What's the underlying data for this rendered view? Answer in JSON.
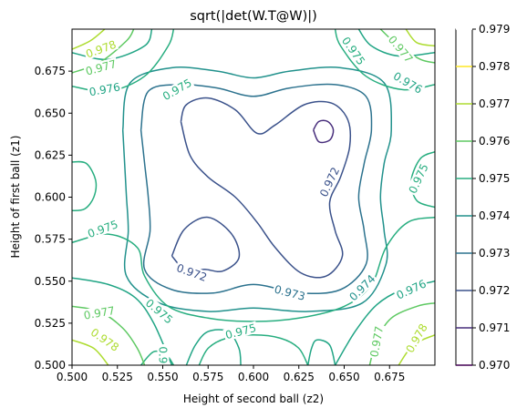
{
  "chart_data": {
    "type": "contour",
    "title": "sqrt(|det(W.T@W)|)",
    "xlabel": "Height of second ball (z2)",
    "ylabel": "Height of first ball (z1)",
    "xlim": [
      0.5,
      0.7
    ],
    "ylim": [
      0.5,
      0.7
    ],
    "x_ticks": [
      "0.500",
      "0.525",
      "0.550",
      "0.575",
      "0.600",
      "0.625",
      "0.650",
      "0.675"
    ],
    "y_ticks": [
      "0.500",
      "0.525",
      "0.550",
      "0.575",
      "0.600",
      "0.625",
      "0.650",
      "0.675"
    ],
    "colorbar_levels": [
      "0.970",
      "0.971",
      "0.972",
      "0.973",
      "0.974",
      "0.975",
      "0.976",
      "0.977",
      "0.978",
      "0.979"
    ],
    "colorbar_colors": [
      "#440154",
      "#472d7b",
      "#3b528b",
      "#2c728e",
      "#21918c",
      "#28ae80",
      "#5ec962",
      "#addc30",
      "#fde725"
    ],
    "contours": [
      {
        "level": "0.971",
        "color": "#472d7b",
        "label": "",
        "paths": [
          [
            [
              0.633,
              0.64
            ],
            [
              0.636,
              0.645
            ],
            [
              0.641,
              0.645
            ],
            [
              0.644,
              0.64
            ],
            [
              0.642,
              0.634
            ],
            [
              0.636,
              0.633
            ],
            [
              0.633,
              0.64
            ]
          ]
        ]
      },
      {
        "level": "0.972",
        "color": "#3b528b",
        "label": "0.972",
        "paths": [
          [
            [
              0.56,
              0.645
            ],
            [
              0.563,
              0.655
            ],
            [
              0.575,
              0.659
            ],
            [
              0.59,
              0.652
            ],
            [
              0.602,
              0.638
            ],
            [
              0.612,
              0.643
            ],
            [
              0.628,
              0.655
            ],
            [
              0.643,
              0.656
            ],
            [
              0.652,
              0.646
            ],
            [
              0.653,
              0.63
            ],
            [
              0.648,
              0.612
            ],
            [
              0.642,
              0.597
            ],
            [
              0.645,
              0.58
            ],
            [
              0.649,
              0.565
            ],
            [
              0.64,
              0.553
            ],
            [
              0.626,
              0.555
            ],
            [
              0.612,
              0.57
            ],
            [
              0.602,
              0.585
            ],
            [
              0.59,
              0.6
            ],
            [
              0.575,
              0.612
            ],
            [
              0.565,
              0.625
            ],
            [
              0.56,
              0.645
            ]
          ],
          [
            [
              0.555,
              0.565
            ],
            [
              0.562,
              0.581
            ],
            [
              0.575,
              0.588
            ],
            [
              0.588,
              0.578
            ],
            [
              0.592,
              0.564
            ],
            [
              0.583,
              0.556
            ],
            [
              0.573,
              0.557
            ],
            [
              0.563,
              0.556
            ],
            [
              0.555,
              0.565
            ]
          ]
        ]
      },
      {
        "level": "0.973",
        "color": "#2c728e",
        "label": "0.973",
        "paths": [
          [
            [
              0.538,
              0.64
            ],
            [
              0.542,
              0.663
            ],
            [
              0.56,
              0.667
            ],
            [
              0.58,
              0.665
            ],
            [
              0.6,
              0.66
            ],
            [
              0.62,
              0.665
            ],
            [
              0.645,
              0.667
            ],
            [
              0.662,
              0.66
            ],
            [
              0.665,
              0.64
            ],
            [
              0.661,
              0.62
            ],
            [
              0.658,
              0.6
            ],
            [
              0.661,
              0.58
            ],
            [
              0.662,
              0.56
            ],
            [
              0.648,
              0.545
            ],
            [
              0.625,
              0.543
            ],
            [
              0.6,
              0.548
            ],
            [
              0.578,
              0.543
            ],
            [
              0.555,
              0.545
            ],
            [
              0.54,
              0.557
            ],
            [
              0.543,
              0.58
            ],
            [
              0.542,
              0.6
            ],
            [
              0.54,
              0.62
            ],
            [
              0.538,
              0.64
            ]
          ]
        ]
      },
      {
        "level": "0.974",
        "color": "#21918c",
        "label": "0.974",
        "paths": [
          [
            [
              0.528,
              0.64
            ],
            [
              0.532,
              0.668
            ],
            [
              0.555,
              0.677
            ],
            [
              0.58,
              0.675
            ],
            [
              0.6,
              0.671
            ],
            [
              0.62,
              0.675
            ],
            [
              0.648,
              0.677
            ],
            [
              0.672,
              0.668
            ],
            [
              0.676,
              0.64
            ],
            [
              0.672,
              0.62
            ],
            [
              0.67,
              0.6
            ],
            [
              0.672,
              0.58
            ],
            [
              0.673,
              0.56
            ],
            [
              0.66,
              0.537
            ],
            [
              0.63,
              0.532
            ],
            [
              0.6,
              0.534
            ],
            [
              0.575,
              0.532
            ],
            [
              0.548,
              0.537
            ],
            [
              0.53,
              0.553
            ],
            [
              0.531,
              0.58
            ],
            [
              0.53,
              0.6
            ],
            [
              0.529,
              0.62
            ],
            [
              0.528,
              0.64
            ]
          ]
        ]
      },
      {
        "level": "0.975",
        "color": "#28ae80",
        "label": "0.975",
        "paths": [
          [
            [
              0.5,
              0.666
            ],
            [
              0.52,
              0.663
            ],
            [
              0.54,
              0.672
            ],
            [
              0.553,
              0.69
            ],
            [
              0.556,
              0.7
            ]
          ],
          [
            [
              0.645,
              0.7
            ],
            [
              0.648,
              0.69
            ],
            [
              0.662,
              0.672
            ],
            [
              0.682,
              0.664
            ],
            [
              0.7,
              0.667
            ]
          ],
          [
            [
              0.5,
              0.573
            ],
            [
              0.52,
              0.578
            ],
            [
              0.536,
              0.57
            ],
            [
              0.54,
              0.553
            ],
            [
              0.553,
              0.535
            ],
            [
              0.575,
              0.528
            ],
            [
              0.6,
              0.526
            ],
            [
              0.625,
              0.528
            ],
            [
              0.65,
              0.535
            ],
            [
              0.665,
              0.548
            ],
            [
              0.673,
              0.57
            ],
            [
              0.685,
              0.585
            ],
            [
              0.7,
              0.588
            ]
          ],
          [
            [
              0.5,
              0.621
            ],
            [
              0.508,
              0.62
            ],
            [
              0.513,
              0.61
            ],
            [
              0.512,
              0.6
            ],
            [
              0.507,
              0.593
            ],
            [
              0.5,
              0.592
            ]
          ],
          [
            [
              0.7,
              0.627
            ],
            [
              0.692,
              0.623
            ],
            [
              0.687,
              0.61
            ],
            [
              0.69,
              0.598
            ],
            [
              0.7,
              0.594
            ]
          ],
          [
            [
              0.538,
              0.5
            ],
            [
              0.545,
              0.508
            ],
            [
              0.552,
              0.506
            ],
            [
              0.556,
              0.5
            ]
          ],
          [
            [
              0.57,
              0.5
            ],
            [
              0.575,
              0.51
            ],
            [
              0.585,
              0.516
            ],
            [
              0.6,
              0.518
            ],
            [
              0.615,
              0.516
            ],
            [
              0.625,
              0.51
            ],
            [
              0.63,
              0.5
            ]
          ]
        ]
      },
      {
        "level": "0.976",
        "color": "#21a585",
        "label": "0.976",
        "paths": [
          [
            [
              0.5,
              0.686
            ],
            [
              0.52,
              0.682
            ],
            [
              0.54,
              0.69
            ],
            [
              0.544,
              0.7
            ]
          ],
          [
            [
              0.658,
              0.7
            ],
            [
              0.665,
              0.69
            ],
            [
              0.68,
              0.684
            ],
            [
              0.7,
              0.686
            ]
          ],
          [
            [
              0.5,
              0.552
            ],
            [
              0.52,
              0.548
            ],
            [
              0.535,
              0.54
            ],
            [
              0.545,
              0.525
            ],
            [
              0.555,
              0.5
            ]
          ],
          [
            [
              0.645,
              0.5
            ],
            [
              0.656,
              0.52
            ],
            [
              0.668,
              0.536
            ],
            [
              0.682,
              0.545
            ],
            [
              0.7,
              0.55
            ]
          ],
          [
            [
              0.563,
              0.5
            ],
            [
              0.568,
              0.512
            ],
            [
              0.575,
              0.52
            ],
            [
              0.586,
              0.52
            ],
            [
              0.592,
              0.51
            ],
            [
              0.593,
              0.5
            ]
          ],
          [
            [
              0.63,
              0.5
            ],
            [
              0.632,
              0.51
            ],
            [
              0.635,
              0.515
            ],
            [
              0.642,
              0.512
            ],
            [
              0.645,
              0.5
            ]
          ]
        ]
      },
      {
        "level": "0.977",
        "color": "#5ec962",
        "label": "0.977",
        "paths": [
          [
            [
              0.5,
              0.674
            ],
            [
              0.515,
              0.68
            ],
            [
              0.53,
              0.693
            ],
            [
              0.534,
              0.7
            ]
          ],
          [
            [
              0.67,
              0.7
            ],
            [
              0.68,
              0.69
            ],
            [
              0.692,
              0.682
            ],
            [
              0.7,
              0.68
            ]
          ],
          [
            [
              0.5,
              0.535
            ],
            [
              0.515,
              0.532
            ],
            [
              0.528,
              0.522
            ],
            [
              0.536,
              0.51
            ],
            [
              0.54,
              0.5
            ]
          ],
          [
            [
              0.664,
              0.5
            ],
            [
              0.668,
              0.515
            ],
            [
              0.676,
              0.528
            ],
            [
              0.69,
              0.535
            ],
            [
              0.7,
              0.537
            ]
          ]
        ]
      },
      {
        "level": "0.978",
        "color": "#addc30",
        "label": "0.978",
        "paths": [
          [
            [
              0.5,
              0.688
            ],
            [
              0.51,
              0.693
            ],
            [
              0.518,
              0.7
            ]
          ],
          [
            [
              0.684,
              0.7
            ],
            [
              0.69,
              0.692
            ],
            [
              0.7,
              0.69
            ]
          ],
          [
            [
              0.5,
              0.515
            ],
            [
              0.512,
              0.51
            ],
            [
              0.52,
              0.5
            ]
          ],
          [
            [
              0.68,
              0.5
            ],
            [
              0.688,
              0.512
            ],
            [
              0.7,
              0.518
            ]
          ]
        ]
      }
    ],
    "contour_labels": [
      {
        "text": "0.978",
        "x": 0.516,
        "y": 0.688,
        "rot": -20,
        "color": "#addc30"
      },
      {
        "text": "0.977",
        "x": 0.516,
        "y": 0.677,
        "rot": -15,
        "color": "#5ec962"
      },
      {
        "text": "0.976",
        "x": 0.518,
        "y": 0.664,
        "rot": -10,
        "color": "#21a585"
      },
      {
        "text": "0.975",
        "x": 0.558,
        "y": 0.664,
        "rot": -30,
        "color": "#28ae80"
      },
      {
        "text": "0.975",
        "x": 0.655,
        "y": 0.687,
        "rot": 55,
        "color": "#28ae80"
      },
      {
        "text": "0.977",
        "x": 0.681,
        "y": 0.688,
        "rot": 50,
        "color": "#5ec962"
      },
      {
        "text": "0.976",
        "x": 0.685,
        "y": 0.668,
        "rot": 30,
        "color": "#21a585"
      },
      {
        "text": "0.972",
        "x": 0.642,
        "y": 0.609,
        "rot": -65,
        "color": "#3b528b"
      },
      {
        "text": "0.975",
        "x": 0.691,
        "y": 0.611,
        "rot": -65,
        "color": "#28ae80"
      },
      {
        "text": "0.975",
        "x": 0.517,
        "y": 0.581,
        "rot": -20,
        "color": "#28ae80"
      },
      {
        "text": "0.972",
        "x": 0.566,
        "y": 0.555,
        "rot": 20,
        "color": "#3b528b"
      },
      {
        "text": "0.973",
        "x": 0.62,
        "y": 0.543,
        "rot": 15,
        "color": "#2c728e"
      },
      {
        "text": "0.974",
        "x": 0.66,
        "y": 0.546,
        "rot": -45,
        "color": "#21918c"
      },
      {
        "text": "0.976",
        "x": 0.687,
        "y": 0.545,
        "rot": -25,
        "color": "#21a585"
      },
      {
        "text": "0.977",
        "x": 0.515,
        "y": 0.531,
        "rot": -10,
        "color": "#5ec962"
      },
      {
        "text": "0.975",
        "x": 0.548,
        "y": 0.532,
        "rot": 40,
        "color": "#28ae80"
      },
      {
        "text": "0.975",
        "x": 0.593,
        "y": 0.52,
        "rot": -15,
        "color": "#28ae80"
      },
      {
        "text": "0.978",
        "x": 0.518,
        "y": 0.515,
        "rot": 35,
        "color": "#addc30"
      },
      {
        "text": "0.977",
        "x": 0.668,
        "y": 0.514,
        "rot": -80,
        "color": "#5ec962"
      },
      {
        "text": "0.978",
        "x": 0.69,
        "y": 0.516,
        "rot": -60,
        "color": "#addc30"
      },
      {
        "text": "0.9",
        "x": 0.55,
        "y": 0.506,
        "rot": 90,
        "color": "#28ae80"
      }
    ]
  }
}
